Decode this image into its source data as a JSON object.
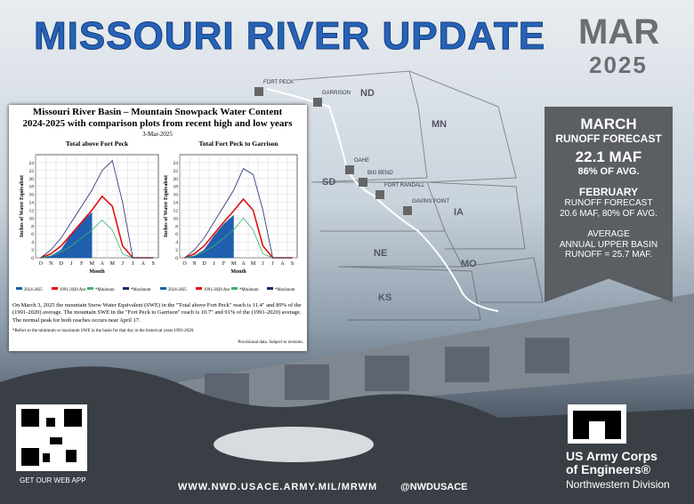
{
  "header": {
    "title": "MISSOURI RIVER UPDATE",
    "month": "MAR",
    "year": "2025"
  },
  "forecast": {
    "heading": "MARCH",
    "subheading": "RUNOFF FORECAST",
    "value": "22.1 MAF",
    "percent": "86% OF AVG.",
    "prev_heading": "FEBRUARY",
    "prev_subheading": "RUNOFF FORECAST",
    "prev_value": "20.6 MAF, 80% OF AVG.",
    "average": [
      "AVERAGE",
      "ANNUAL UPPER BASIN",
      "RUNOFF = 25.7 MAF."
    ]
  },
  "map": {
    "states": [
      "ND",
      "MN",
      "SD",
      "IA",
      "NE",
      "MO",
      "KS"
    ],
    "dams": [
      "FORT PECK",
      "GARRISON",
      "OAHE",
      "BIG BEND",
      "FORT RANDALL",
      "GAVINS POINT"
    ]
  },
  "snowpack": {
    "title": "Missouri River Basin – Mountain Snowpack Water Content",
    "subtitle": "2024-2025 with comparison plots from recent high and low years",
    "date": "3-Mar-2025",
    "summary": "On March 3, 2025 the mountain Snow Water Equivalent (SWE) in the \"Total above Fort Peck\" reach is 11.4\" and 89% of the (1991-2020) average. The mountain SWE in the \"Fort Peck to Garrison\" reach is 10.7\" and 91% of the (1991-2020) average. The normal peak for both reaches occurs near April 17.",
    "footnote": "*Refers to the minimum or maximum SWE in the basin for that day in the historical years 1991-2020.",
    "disclaimer": "Provisional data. Subject to revision."
  },
  "chart_data": [
    {
      "type": "line",
      "title": "Total above Fort Peck",
      "categories": [
        "O",
        "N",
        "D",
        "J",
        "F",
        "M",
        "A",
        "M",
        "J",
        "J",
        "A",
        "S"
      ],
      "ylim": [
        0,
        26
      ],
      "yticks": [
        0,
        2,
        4,
        6,
        8,
        10,
        12,
        14,
        16,
        18,
        20,
        22,
        24
      ],
      "y_label": "Inches of Water Equivalent",
      "x_label": "Month",
      "series": [
        {
          "name": "2024-2025",
          "color": "#1f5fae",
          "area": true,
          "values": [
            0,
            0.5,
            2,
            6,
            9,
            11.4,
            null,
            null,
            null,
            null,
            null,
            null
          ]
        },
        {
          "name": "1991-2020 Ave",
          "color": "#e01010",
          "values": [
            0,
            1,
            3,
            6,
            9,
            12,
            15.5,
            13,
            3,
            0,
            0,
            0
          ]
        },
        {
          "name": "*Minimum",
          "color": "#3cb371",
          "values": [
            0,
            0.5,
            1.5,
            3,
            5,
            7,
            9.5,
            7,
            1,
            0,
            0,
            0
          ]
        },
        {
          "name": "*Maximum",
          "color": "#1a2a6c",
          "values": [
            0,
            2,
            5,
            9,
            13,
            17,
            22,
            24.5,
            14,
            0,
            0,
            0
          ]
        }
      ]
    },
    {
      "type": "line",
      "title": "Total Fort Peck to Garrison",
      "categories": [
        "O",
        "N",
        "D",
        "J",
        "F",
        "M",
        "A",
        "M",
        "J",
        "J",
        "A",
        "S"
      ],
      "ylim": [
        0,
        26
      ],
      "yticks": [
        0,
        2,
        4,
        6,
        8,
        10,
        12,
        14,
        16,
        18,
        20,
        22,
        24
      ],
      "y_label": "Inches of Water Equivalent",
      "x_label": "Month",
      "series": [
        {
          "name": "2024-2025",
          "color": "#1f5fae",
          "area": true,
          "values": [
            0,
            0.5,
            2,
            5.5,
            8.5,
            10.7,
            null,
            null,
            null,
            null,
            null,
            null
          ]
        },
        {
          "name": "1991-2020 Ave",
          "color": "#e01010",
          "values": [
            0,
            1,
            3,
            6,
            9,
            11.8,
            14.8,
            12,
            3,
            0,
            0,
            0
          ]
        },
        {
          "name": "*Minimum",
          "color": "#3cb371",
          "values": [
            0,
            0.5,
            1.5,
            3,
            5,
            7,
            10,
            7,
            1,
            0,
            0,
            0
          ]
        },
        {
          "name": "*Maximum",
          "color": "#1a2a6c",
          "values": [
            0,
            2,
            5,
            9,
            13,
            17,
            22.5,
            21,
            12,
            0,
            0,
            0
          ]
        }
      ]
    }
  ],
  "footer": {
    "qr_caption": "GET OUR WEB APP",
    "url": "WWW.NWD.USACE.ARMY.MIL/MRWM",
    "social": "@NWDUSACE",
    "org": [
      "US Army Corps",
      "of Engineers®"
    ],
    "division": "Northwestern Division"
  }
}
